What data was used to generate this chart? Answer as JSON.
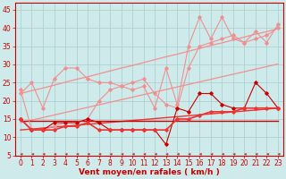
{
  "x": [
    0,
    1,
    2,
    3,
    4,
    5,
    6,
    7,
    8,
    9,
    10,
    11,
    12,
    13,
    14,
    15,
    16,
    17,
    18,
    19,
    20,
    21,
    22,
    23
  ],
  "series": [
    {
      "name": "light_jagged1",
      "color": "#f09090",
      "lw": 0.8,
      "marker": "D",
      "ms": 1.8,
      "y": [
        22,
        25,
        18,
        26,
        29,
        29,
        26,
        25,
        25,
        24,
        23,
        24,
        18,
        29,
        19,
        35,
        43,
        37,
        43,
        37,
        36,
        39,
        36,
        41
      ]
    },
    {
      "name": "light_jagged2",
      "color": "#f09090",
      "lw": 0.8,
      "marker": "D",
      "ms": 1.8,
      "y": [
        23,
        12,
        12,
        13,
        14,
        14,
        15,
        20,
        23,
        24,
        25,
        26,
        22,
        19,
        18,
        29,
        35,
        36,
        37,
        38,
        36,
        37,
        38,
        40
      ]
    },
    {
      "name": "light_trend_upper",
      "color": "#f09090",
      "lw": 0.9,
      "marker": null,
      "ms": 0,
      "y": [
        22.0,
        22.8,
        23.5,
        24.3,
        25.1,
        25.9,
        26.6,
        27.4,
        28.2,
        29.0,
        29.7,
        30.5,
        31.3,
        32.1,
        32.8,
        33.6,
        34.4,
        35.2,
        35.9,
        36.7,
        37.5,
        38.3,
        39.0,
        39.8
      ]
    },
    {
      "name": "light_trend_lower",
      "color": "#f09090",
      "lw": 0.9,
      "marker": null,
      "ms": 0,
      "y": [
        14.0,
        14.7,
        15.4,
        16.1,
        16.8,
        17.5,
        18.2,
        18.9,
        19.6,
        20.3,
        21.0,
        21.7,
        22.4,
        23.1,
        23.8,
        24.5,
        25.2,
        25.9,
        26.6,
        27.3,
        28.0,
        28.7,
        29.4,
        30.1
      ]
    },
    {
      "name": "red_jagged",
      "color": "#cc0000",
      "lw": 0.8,
      "marker": "D",
      "ms": 1.8,
      "y": [
        15,
        12,
        12,
        14,
        14,
        14,
        15,
        14,
        12,
        12,
        12,
        12,
        12,
        8,
        18,
        17,
        22,
        22,
        19,
        18,
        18,
        25,
        22,
        18
      ]
    },
    {
      "name": "red_smooth",
      "color": "#ee3333",
      "lw": 1.2,
      "marker": "D",
      "ms": 1.8,
      "y": [
        15,
        12,
        12,
        12,
        13,
        13,
        14,
        12,
        12,
        12,
        12,
        12,
        12,
        12,
        15,
        15,
        16,
        17,
        17,
        17,
        18,
        18,
        18,
        18
      ]
    },
    {
      "name": "red_trend1",
      "color": "#ee3333",
      "lw": 1.0,
      "marker": null,
      "ms": 0,
      "y": [
        12.0,
        12.26,
        12.52,
        12.78,
        13.04,
        13.3,
        13.56,
        13.82,
        14.08,
        14.34,
        14.6,
        14.86,
        15.12,
        15.38,
        15.64,
        15.9,
        16.16,
        16.42,
        16.68,
        16.94,
        17.2,
        17.46,
        17.72,
        17.98
      ]
    },
    {
      "name": "red_flat",
      "color": "#cc0000",
      "lw": 1.0,
      "marker": null,
      "ms": 0,
      "y": [
        14.5,
        14.5,
        14.5,
        14.5,
        14.5,
        14.5,
        14.5,
        14.5,
        14.5,
        14.5,
        14.5,
        14.5,
        14.5,
        14.5,
        14.5,
        14.5,
        14.5,
        14.5,
        14.5,
        14.5,
        14.5,
        14.5,
        14.5,
        14.5
      ]
    }
  ],
  "xlabel": "Vent moyen/en rafales ( km/h )",
  "xlim": [
    -0.5,
    23.5
  ],
  "ylim": [
    5,
    47
  ],
  "yticks": [
    5,
    10,
    15,
    20,
    25,
    30,
    35,
    40,
    45
  ],
  "xticks": [
    0,
    1,
    2,
    3,
    4,
    5,
    6,
    7,
    8,
    9,
    10,
    11,
    12,
    13,
    14,
    15,
    16,
    17,
    18,
    19,
    20,
    21,
    22,
    23
  ],
  "bg_color": "#ceeaea",
  "grid_color": "#aacccc",
  "xlabel_color": "#cc0000",
  "xlabel_fontsize": 6.5,
  "tick_fontsize": 5.5,
  "tick_color": "#cc0000"
}
